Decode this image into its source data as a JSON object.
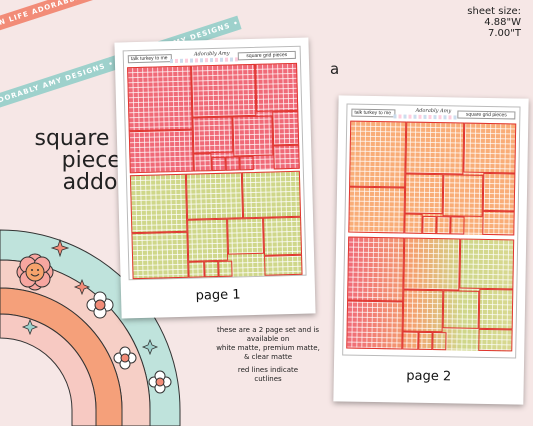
{
  "ribbons": {
    "top": "PLAN LIFE ADORABLY • PLAN LIFE ADORABLY • PLAN LIFE ADORABLY • PLAN LIFE ADORABLY",
    "bottom": "ADORABLY AMY DESIGNS • ADORABLY AMY DESIGNS • ADORABLY AMY DESIGNS"
  },
  "title": {
    "line1": "square grid",
    "line2": "pieces",
    "line3": "addon"
  },
  "sheet_size": {
    "label": "sheet size:",
    "width": "4.88\"W",
    "height": "7.00\"T"
  },
  "variant_letter": "a",
  "page1": {
    "header_left": "talk turkey to me",
    "header_mid": "Adorably Amy",
    "header_right": "square grid pieces",
    "label": "page 1"
  },
  "page2": {
    "header_left": "talk turkey to me",
    "header_mid": "Adorably Amy",
    "header_right": "square grid pieces",
    "label": "page 2"
  },
  "note": {
    "line1": "these are a 2 page set and is",
    "line2": "available on",
    "line3": "white matte, premium matte,",
    "line4": "& clear matte",
    "line5": "red lines indicate",
    "line6": "cutlines"
  },
  "colors": {
    "background": "#f6e7e6",
    "pink": "#f06a78",
    "green": "#cfd78a",
    "orange": "#f9ad78",
    "cutline": "#e0352f"
  }
}
